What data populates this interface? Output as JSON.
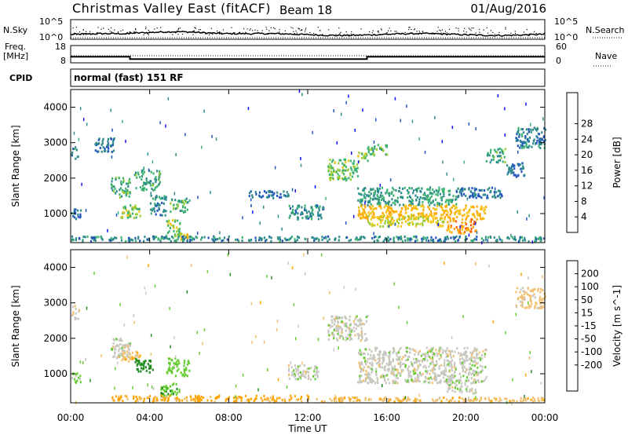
{
  "header": {
    "title": "Christmas Valley East (fitACF)",
    "beam": "Beam 18",
    "date": "01/Aug/2016"
  },
  "nsky_panel": {
    "left_label": "N.Sky",
    "right_label": "N.Search",
    "tick_top": "10^5",
    "tick_bottom": "10^0"
  },
  "freq_panel": {
    "left_label_1": "Freq.",
    "left_label_2": "[MHz]",
    "right_label": "Nave",
    "left_ticks": [
      "18",
      "8"
    ],
    "right_ticks": [
      "60",
      "0"
    ],
    "freq_steps": [
      {
        "t0": 0,
        "t1": 3,
        "v": 11.5
      },
      {
        "t0": 3,
        "t1": 15,
        "v": 10.2
      },
      {
        "t0": 15,
        "t1": 24,
        "v": 11.5
      }
    ]
  },
  "cpid_panel": {
    "label": "CPID",
    "text": "normal (fast) 151 RF"
  },
  "colors": {
    "power_scale": [
      "#1010ff",
      "#2255bb",
      "#2e8b8b",
      "#3cb371",
      "#9acd32",
      "#f5c518",
      "#ffa500",
      "#ff5a00",
      "#ee0000"
    ],
    "velocity_scale": [
      "#ee0000",
      "#ff6600",
      "#ffa500",
      "#f0c070",
      "#c8c8c0",
      "#c8c8c0",
      "#66cc33",
      "#228b22",
      "#1e6090",
      "#1a1acc"
    ],
    "ground": "#c0c0b8"
  },
  "chart_data": [
    {
      "type": "heatmap",
      "title": "Power",
      "xlabel": "",
      "ylabel": "Slant Range [km]",
      "xlim": [
        0,
        24
      ],
      "ylim": [
        180,
        4500
      ],
      "x_ticks": [
        "00:00",
        "04:00",
        "08:00",
        "12:00",
        "16:00",
        "20:00",
        "00:00"
      ],
      "y_ticks": [
        1000,
        2000,
        3000,
        4000
      ],
      "colorbar": {
        "label": "Power [dB]",
        "range": [
          0,
          32
        ],
        "ticks": [
          "4",
          "8",
          "12",
          "16",
          "20",
          "24",
          "28"
        ]
      },
      "regions": [
        {
          "t0": 0.0,
          "t1": 0.4,
          "r0": 2500,
          "r1": 2900,
          "v": 10
        },
        {
          "t0": 0.0,
          "t1": 0.5,
          "r0": 800,
          "r1": 1100,
          "v": 9
        },
        {
          "t0": 1.2,
          "t1": 2.2,
          "r0": 2700,
          "r1": 3100,
          "v": 8
        },
        {
          "t0": 2.0,
          "t1": 3.0,
          "r0": 1400,
          "r1": 2000,
          "v": 14
        },
        {
          "t0": 2.5,
          "t1": 3.5,
          "r0": 800,
          "r1": 1200,
          "v": 17
        },
        {
          "t0": 3.2,
          "t1": 4.5,
          "r0": 1600,
          "r1": 2200,
          "v": 13
        },
        {
          "t0": 4.0,
          "t1": 4.8,
          "r0": 900,
          "r1": 1500,
          "v": 10
        },
        {
          "t0": 5.0,
          "t1": 6.0,
          "r0": 1000,
          "r1": 1400,
          "v": 15
        },
        {
          "t0": 4.8,
          "t1": 5.5,
          "r0": 300,
          "r1": 800,
          "v": 17
        },
        {
          "t0": 5.5,
          "t1": 6.0,
          "r0": 200,
          "r1": 400,
          "v": 22
        },
        {
          "t0": 9.0,
          "t1": 11.0,
          "r0": 1400,
          "r1": 1600,
          "v": 8
        },
        {
          "t0": 11.0,
          "t1": 12.8,
          "r0": 800,
          "r1": 1200,
          "v": 10
        },
        {
          "t0": 13.0,
          "t1": 14.5,
          "r0": 1900,
          "r1": 2500,
          "v": 17
        },
        {
          "t0": 14.5,
          "t1": 15.0,
          "r0": 2400,
          "r1": 2700,
          "v": 18
        },
        {
          "t0": 15.0,
          "t1": 16.0,
          "r0": 2600,
          "r1": 2900,
          "v": 14
        },
        {
          "t0": 14.5,
          "t1": 19.5,
          "r0": 1200,
          "r1": 1700,
          "v": 12
        },
        {
          "t0": 14.5,
          "t1": 21.0,
          "r0": 800,
          "r1": 1200,
          "v": 24
        },
        {
          "t0": 15.0,
          "t1": 19.0,
          "r0": 600,
          "r1": 900,
          "v": 20
        },
        {
          "t0": 19.0,
          "t1": 20.5,
          "r0": 400,
          "r1": 800,
          "v": 26
        },
        {
          "t0": 19.5,
          "t1": 22.0,
          "r0": 1400,
          "r1": 1700,
          "v": 8
        },
        {
          "t0": 21.0,
          "t1": 22.0,
          "r0": 2400,
          "r1": 2800,
          "v": 14
        },
        {
          "t0": 22.0,
          "t1": 23.0,
          "r0": 2000,
          "r1": 2400,
          "v": 8
        },
        {
          "t0": 22.5,
          "t1": 24.0,
          "r0": 2800,
          "r1": 3400,
          "v": 9
        },
        {
          "t0": 0.0,
          "t1": 24.0,
          "r0": 180,
          "r1": 320,
          "v": 10
        }
      ]
    },
    {
      "type": "heatmap",
      "title": "Velocity",
      "xlabel": "Time UT",
      "ylabel": "Slant Range [km]",
      "xlim": [
        0,
        24
      ],
      "ylim": [
        180,
        4500
      ],
      "x_ticks": [
        "00:00",
        "04:00",
        "08:00",
        "12:00",
        "16:00",
        "20:00",
        "00:00"
      ],
      "y_ticks": [
        1000,
        2000,
        3000,
        4000
      ],
      "colorbar": {
        "label": "Velocity [m s^-1]",
        "ticks": [
          "200",
          "100",
          "50",
          "15",
          "-15",
          "-50",
          "-100",
          "-200"
        ]
      },
      "regions": [
        {
          "t0": 0.0,
          "t1": 0.4,
          "r0": 2500,
          "r1": 2900,
          "v": 0
        },
        {
          "t0": 2.0,
          "t1": 3.0,
          "r0": 1400,
          "r1": 2000,
          "v": 0
        },
        {
          "t0": 2.5,
          "t1": 3.5,
          "r0": 1300,
          "r1": 1600,
          "v": -40
        },
        {
          "t0": 3.2,
          "t1": 4.2,
          "r0": 1000,
          "r1": 1400,
          "v": 70
        },
        {
          "t0": 4.8,
          "t1": 6.0,
          "r0": 900,
          "r1": 1400,
          "v": 30
        },
        {
          "t0": 4.5,
          "t1": 5.5,
          "r0": 300,
          "r1": 700,
          "v": 40
        },
        {
          "t0": 0.0,
          "t1": 0.5,
          "r0": 700,
          "r1": 1000,
          "v": 20
        },
        {
          "t0": 11.0,
          "t1": 12.5,
          "r0": 800,
          "r1": 1200,
          "v": 0
        },
        {
          "t0": 13.0,
          "t1": 15.0,
          "r0": 1900,
          "r1": 2600,
          "v": 0
        },
        {
          "t0": 14.5,
          "t1": 21.0,
          "r0": 700,
          "r1": 1700,
          "v": 0
        },
        {
          "t0": 19.0,
          "t1": 20.5,
          "r0": 400,
          "r1": 800,
          "v": 0
        },
        {
          "t0": 22.5,
          "t1": 24.0,
          "r0": 2800,
          "r1": 3400,
          "v": -30
        },
        {
          "t0": 2.0,
          "t1": 12.0,
          "r0": 180,
          "r1": 350,
          "v": -60
        },
        {
          "t0": 12.0,
          "t1": 24.0,
          "r0": 180,
          "r1": 300,
          "v": -40
        }
      ]
    }
  ]
}
